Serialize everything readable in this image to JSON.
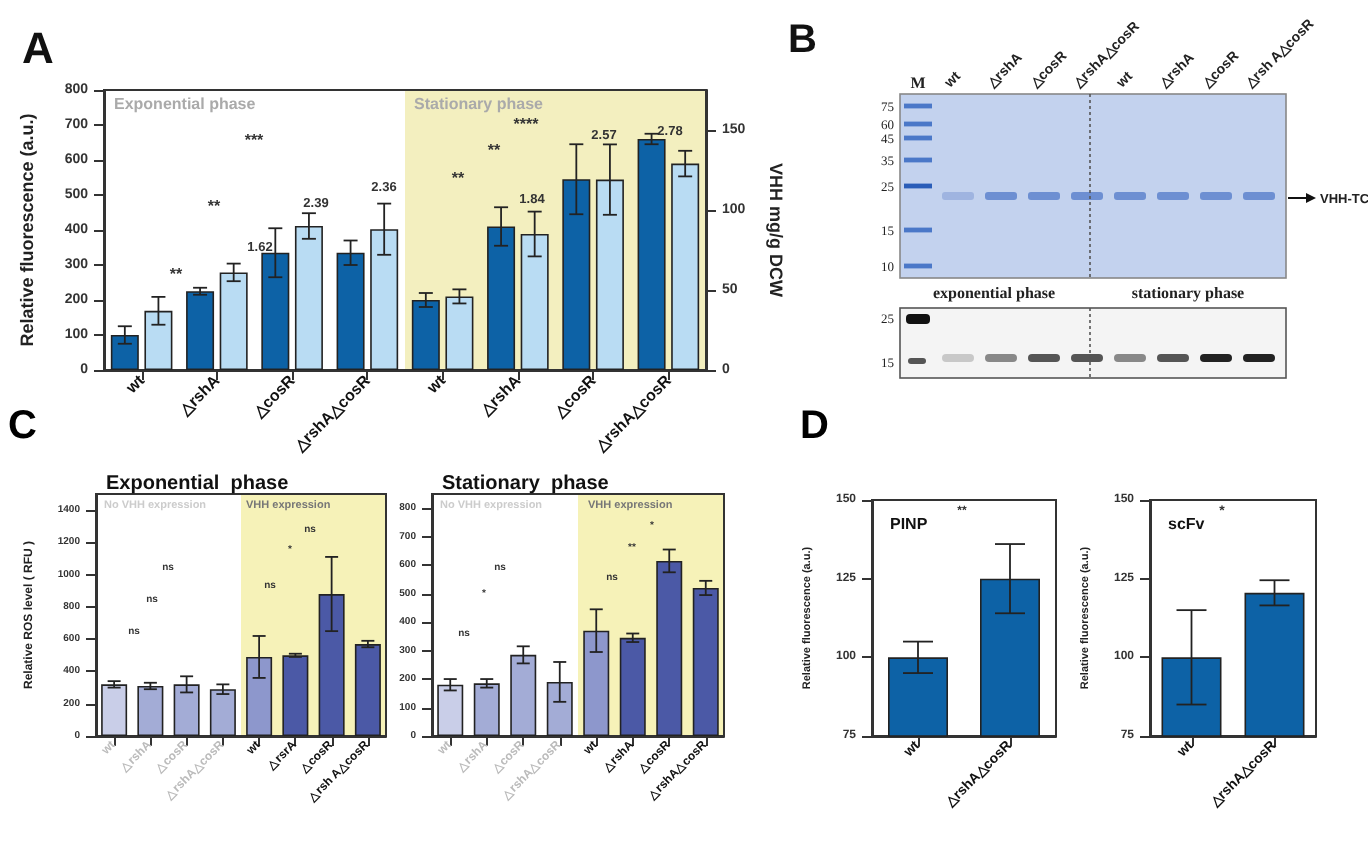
{
  "chart_data": [
    {
      "type": "bar",
      "title": "A",
      "categories": [
        "wt",
        "△rshA",
        "△cosR",
        "△rshA△cosR",
        "wt",
        "△rshA",
        "△cosR",
        "△rshA△cosR"
      ],
      "ylabel": "Relative fluorescence (a.u.)",
      "y2label": "VHH mg/g DCW",
      "ylim": [
        0,
        800
      ],
      "yticks": [
        0,
        100,
        200,
        300,
        400,
        500,
        600,
        700,
        800
      ],
      "y2lim": [
        0,
        175
      ],
      "y2ticks": [
        0,
        50,
        100,
        150
      ],
      "series": [
        {
          "color": "#0d62a6",
          "values": [
            100,
            225,
            335,
            335,
            200,
            410,
            545,
            660
          ],
          "errors": [
            25,
            10,
            70,
            35,
            20,
            55,
            100,
            15
          ]
        },
        {
          "color": "#b9dcf3",
          "axis": "y2",
          "values": [
            37,
            61,
            90,
            88,
            46,
            85,
            119,
            129
          ],
          "errors": [
            8.7,
            5.5,
            8,
            16,
            4.4,
            14,
            22,
            8
          ]
        }
      ],
      "annotations": [
        "Exponential phase",
        "Stationary phase",
        "**",
        "**",
        "***",
        "**",
        "**",
        "****",
        "1.62",
        "2.39",
        "2.36",
        "1.84",
        "2.57",
        "2.78"
      ]
    },
    {
      "type": "other",
      "title": "B",
      "annotations": [
        "M",
        "wt",
        "△rshA",
        "△cosR",
        "△rshA△cosR",
        "wt",
        "△rshA",
        "△cosR",
        "△rsh A△cosR",
        "75",
        "60",
        "45",
        "35",
        "25",
        "15",
        "10",
        "25",
        "15",
        "VHH-TC",
        "exponential phase",
        "stationary phase"
      ]
    },
    {
      "type": "bar",
      "title": "Exponential  phase",
      "categories": [
        "wt",
        "△rshA",
        "△cosR",
        "△rshA△cosR",
        "wt",
        "△rsrA",
        "△cosR",
        "△rsh A△cosR"
      ],
      "ylabel": "Relative ROS level ( RFU )",
      "ylim": [
        0,
        1500
      ],
      "yticks": [
        0,
        200,
        400,
        600,
        800,
        1000,
        1200,
        1400
      ],
      "values": [
        320,
        310,
        320,
        290,
        490,
        500,
        880,
        570
      ],
      "errors": [
        20,
        20,
        50,
        30,
        130,
        10,
        230,
        20
      ],
      "colors": [
        "#c9cee8",
        "#a3acd6",
        "#a3acd6",
        "#a3acd6",
        "#8d97cc",
        "#4b59a6",
        "#4b59a6",
        "#4b59a6"
      ],
      "annotations": [
        "C",
        "No VHH expression",
        "VHH expression",
        "ns",
        "ns",
        "ns",
        "ns",
        "*",
        "ns"
      ]
    },
    {
      "type": "bar",
      "title": "Stationary  phase",
      "categories": [
        "wt",
        "△rshA",
        "△cosR",
        "△rshA△cosR",
        "wt",
        "△rshA",
        "△cosR",
        "△rshA△cosR"
      ],
      "ylim": [
        0,
        850
      ],
      "yticks": [
        0,
        100,
        200,
        300,
        400,
        500,
        600,
        700,
        800
      ],
      "values": [
        180,
        185,
        285,
        190,
        370,
        345,
        615,
        520
      ],
      "errors": [
        20,
        15,
        30,
        70,
        75,
        15,
        40,
        25
      ],
      "colors": [
        "#c9cee8",
        "#a3acd6",
        "#a3acd6",
        "#a3acd6",
        "#8d97cc",
        "#4b59a6",
        "#4b59a6",
        "#4b59a6"
      ],
      "annotations": [
        "No VHH expression",
        "VHH expression",
        "ns",
        "*",
        "ns",
        "ns",
        "**",
        "*"
      ]
    },
    {
      "type": "bar",
      "title": "PINP",
      "categories": [
        "wt",
        "△rshA△cosR"
      ],
      "ylabel": "Relative fluorescence (a.u.)",
      "ylim": [
        75,
        150
      ],
      "yticks": [
        75,
        100,
        125,
        150
      ],
      "color": "#0d62a6",
      "values": [
        100,
        125
      ],
      "errors": [
        5,
        11
      ],
      "annotations": [
        "D",
        "**"
      ]
    },
    {
      "type": "bar",
      "title": "scFv",
      "categories": [
        "wt",
        "△rshA△cosR"
      ],
      "ylabel": "Relative fluorescence (a.u.)",
      "ylim": [
        75,
        150
      ],
      "yticks": [
        75,
        100,
        125,
        150
      ],
      "color": "#0d62a6",
      "values": [
        100,
        120.5
      ],
      "errors": [
        15,
        4
      ],
      "annotations": [
        "*"
      ]
    }
  ]
}
